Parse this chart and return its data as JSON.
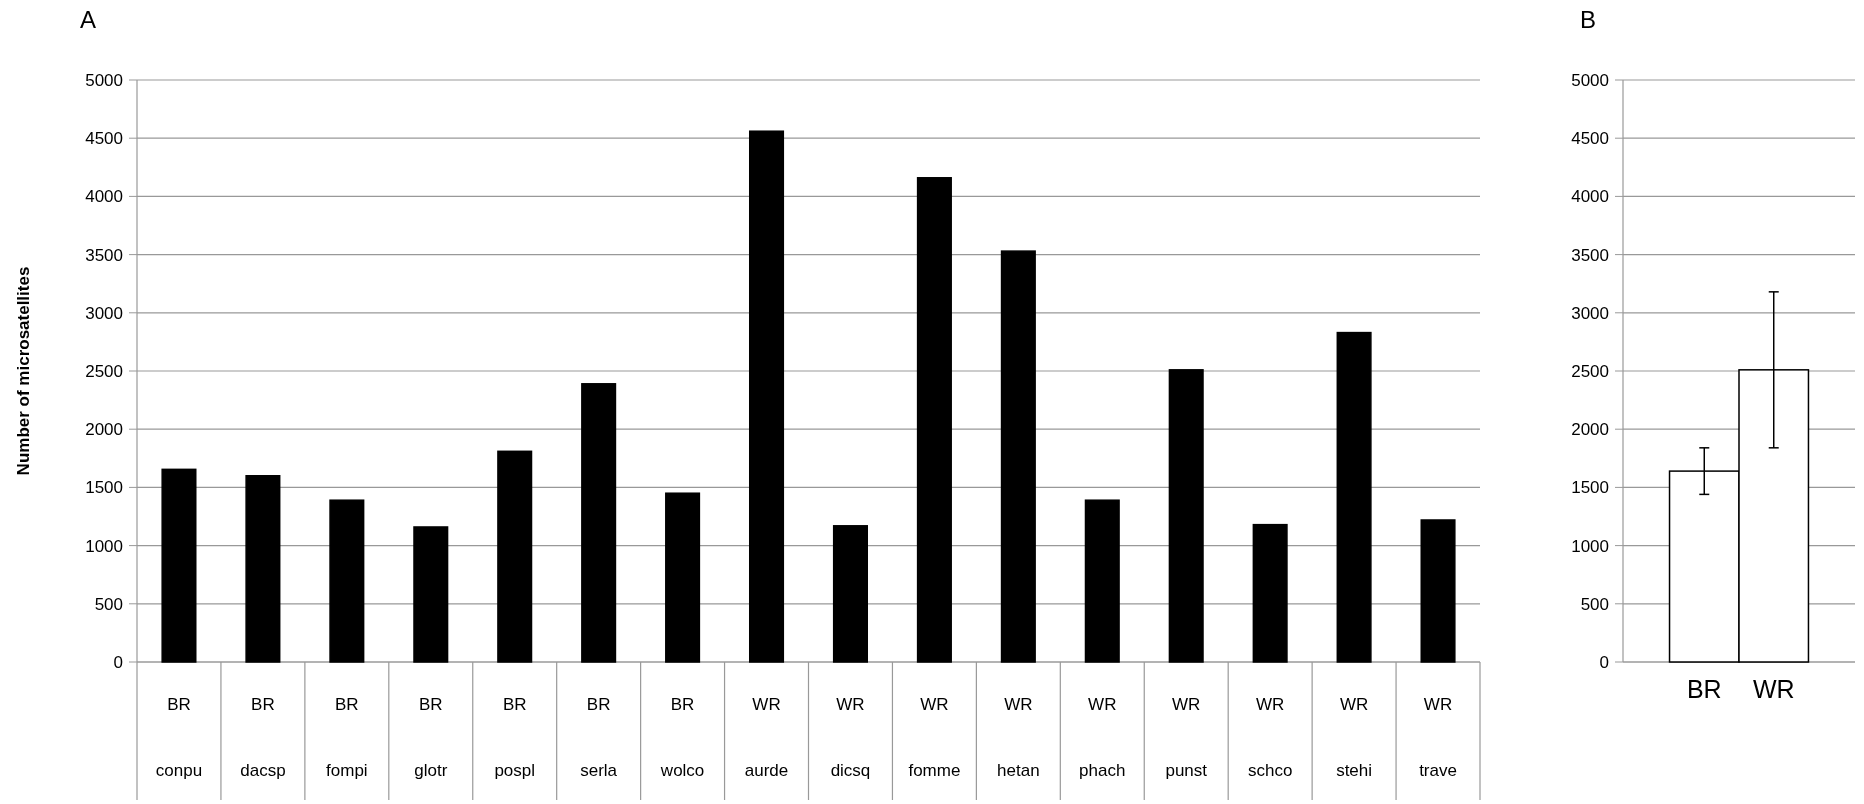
{
  "chart_data": [
    {
      "type": "bar",
      "title": "A",
      "ylabel": "Number of microsatellites",
      "categories": [
        "BR\nconpu",
        "BR\ndacsp",
        "BR\nfompi",
        "BR\nglotr",
        "BR\npospl",
        "BR\nserla",
        "BR\nwolco",
        "WR\naurde",
        "WR\ndicsq",
        "WR\nfomme",
        "WR\nhetan",
        "WR\nphach",
        "WR\npunst",
        "WR\nschco",
        "WR\nstehi",
        "WR\ntrave"
      ],
      "values": [
        1655,
        1600,
        1390,
        1160,
        1810,
        2390,
        1450,
        4560,
        1170,
        4160,
        3530,
        1390,
        2510,
        1180,
        2830,
        1220
      ],
      "color": "#000000",
      "ylim": [
        0,
        5000
      ],
      "yticks": [
        0,
        500,
        1000,
        1500,
        2000,
        2500,
        3000,
        3500,
        4000,
        4500,
        5000
      ],
      "grid": "y"
    },
    {
      "type": "bar",
      "title": "B",
      "categories": [
        "BR",
        "WR"
      ],
      "values": [
        1640,
        2510
      ],
      "errors": [
        [
          1440,
          1840
        ],
        [
          1840,
          3180
        ]
      ],
      "color": "#ffffff",
      "ylim": [
        0,
        5000
      ],
      "yticks": [
        0,
        500,
        1000,
        1500,
        2000,
        2500,
        3000,
        3500,
        4000,
        4500,
        5000
      ],
      "grid": "y"
    }
  ]
}
